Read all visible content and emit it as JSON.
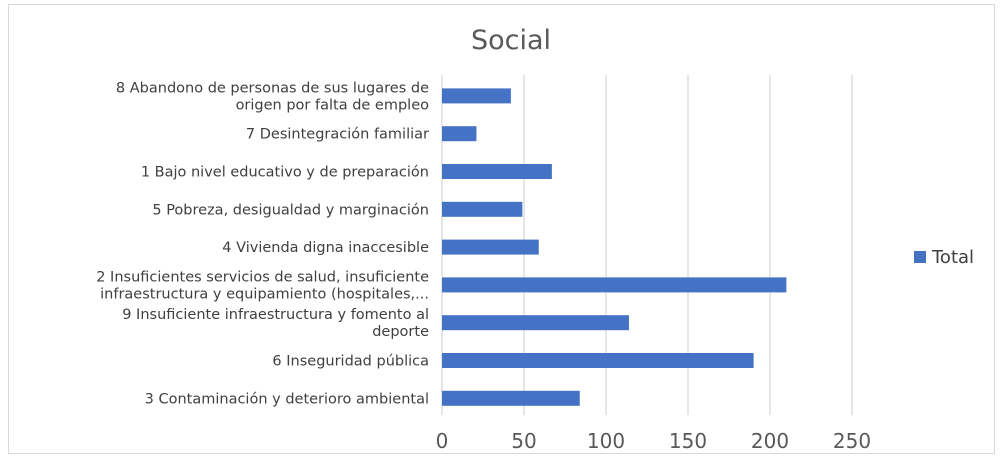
{
  "chart_data": {
    "type": "bar",
    "orientation": "horizontal",
    "title": "Social",
    "categories": [
      [
        "8 Abandono de personas de sus lugares de",
        "origen por falta de empleo"
      ],
      [
        "7 Desintegración familiar"
      ],
      [
        "1 Bajo nivel educativo y de preparación"
      ],
      [
        "5 Pobreza, desigualdad y marginación"
      ],
      [
        "4 Vivienda digna inaccesible"
      ],
      [
        "2 Insuficientes servicios de salud, insuficiente",
        "infraestructura y equipamiento (hospitales,..."
      ],
      [
        "9 Insuficiente infraestructura y fomento al",
        "deporte"
      ],
      [
        "6 Inseguridad pública"
      ],
      [
        "3 Contaminación y deterioro ambiental"
      ]
    ],
    "series": [
      {
        "name": "Total",
        "values": [
          42,
          21,
          67,
          49,
          59,
          210,
          114,
          190,
          84
        ]
      }
    ],
    "xlim": [
      0,
      250
    ],
    "xticks": [
      0,
      50,
      100,
      150,
      200,
      250
    ],
    "grid": true,
    "legend_position": "right",
    "colors": {
      "bar": "#4472c4",
      "grid": "#d9d9d9",
      "text": "#404040",
      "title": "#595959"
    }
  }
}
